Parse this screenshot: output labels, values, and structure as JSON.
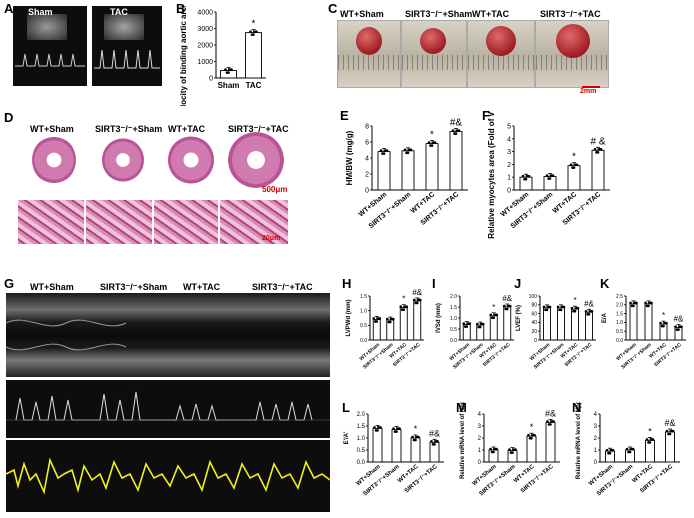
{
  "panels": {
    "A": {
      "letter": "A",
      "labels": [
        "Sham",
        "TAC"
      ]
    },
    "B": {
      "letter": "B",
      "ylabel": "Velocity of binding aortic arch (mm/s)",
      "ytick_top": "4000",
      "categories": [
        "Sham",
        "TAC"
      ],
      "sig": "*"
    },
    "C": {
      "letter": "C",
      "labels": [
        "WT+Sham",
        "SIRT3⁻/⁻+Sham",
        "WT+TAC",
        "SIRT3⁻/⁻+TAC"
      ],
      "scalebar": "2mm"
    },
    "D": {
      "letter": "D",
      "labels": [
        "WT+Sham",
        "SIRT3⁻/⁻+Sham",
        "WT+TAC",
        "SIRT3⁻/⁻+TAC"
      ],
      "scalebar_top": "500μm",
      "scalebar_bottom": "20μm"
    },
    "E": {
      "letter": "E",
      "ylabel": "HM/BW (mg/g)"
    },
    "F": {
      "letter": "F",
      "ylabel": "Relative myocytes area (Fold of WT-Sham)"
    },
    "G": {
      "letter": "G",
      "labels": [
        "WT+Sham",
        "SIRT3⁻/⁻+Sham",
        "WT+TAC",
        "SIRT3⁻/⁻+TAC"
      ]
    },
    "H": {
      "letter": "H",
      "ylabel": "LVPWd (mm)"
    },
    "I": {
      "letter": "I",
      "ylabel": "IVSd (mm)"
    },
    "J": {
      "letter": "J",
      "ylabel": "LVEF (%)"
    },
    "K": {
      "letter": "K",
      "ylabel": "E/A"
    },
    "L": {
      "letter": "L",
      "ylabel": "E'/A'"
    },
    "M": {
      "letter": "M",
      "ylabel": "Relative mRNA level of Nppa"
    },
    "N": {
      "letter": "N",
      "ylabel": "Relative mRNA level of Nppb"
    }
  },
  "group_labels": [
    "WT+Sham",
    "SIRT3⁻/⁻+Sham",
    "WT+TAC",
    "SIRT3⁻/⁻+TAC"
  ],
  "chart_data": [
    {
      "id": "B",
      "type": "bar",
      "categories": [
        "Sham",
        "TAC"
      ],
      "values": [
        450,
        2750
      ],
      "ylim": [
        0,
        4000
      ],
      "yticks": [
        "0",
        "1000",
        "2000",
        "3000",
        "4000"
      ],
      "ylabel": "Velocity of binding aortic arch (mm/s)",
      "sig": [
        "",
        "*"
      ]
    },
    {
      "id": "E",
      "type": "bar",
      "categories": [
        "WT+Sham",
        "SIRT3⁻/⁻+Sham",
        "WT+TAC",
        "SIRT3⁻/⁻+TAC"
      ],
      "values": [
        4.8,
        4.9,
        5.8,
        7.3
      ],
      "ylim": [
        0,
        8
      ],
      "yticks": [
        "0",
        "2",
        "4",
        "6",
        "8"
      ],
      "ylabel": "HM/BW (mg/g)",
      "sig": [
        "",
        "",
        "*",
        "#&"
      ]
    },
    {
      "id": "F",
      "type": "bar",
      "categories": [
        "WT+Sham",
        "SIRT3⁻/⁻+Sham",
        "WT+TAC",
        "SIRT3⁻/⁻+TAC"
      ],
      "values": [
        1.0,
        1.05,
        1.9,
        3.1
      ],
      "ylim": [
        0,
        5
      ],
      "yticks": [
        "0",
        "1",
        "2",
        "3",
        "4",
        "5"
      ],
      "ylabel": "Relative myocytes area (Fold of WT-Sham)",
      "sig": [
        "",
        "",
        "*",
        "# &"
      ]
    },
    {
      "id": "H",
      "type": "bar",
      "categories": [
        "WT+Sham",
        "SIRT3⁻/⁻+Sham",
        "WT+TAC",
        "SIRT3⁻/⁻+TAC"
      ],
      "values": [
        0.7,
        0.68,
        1.1,
        1.33
      ],
      "ylim": [
        0,
        1.5
      ],
      "yticks": [
        "0.0",
        "0.5",
        "1.0",
        "1.5"
      ],
      "ylabel": "LVPWd (mm)",
      "sig": [
        "",
        "",
        "*",
        "#&"
      ]
    },
    {
      "id": "I",
      "type": "bar",
      "categories": [
        "WT+Sham",
        "SIRT3⁻/⁻+Sham",
        "WT+TAC",
        "SIRT3⁻/⁻+TAC"
      ],
      "values": [
        0.7,
        0.68,
        1.1,
        1.5
      ],
      "ylim": [
        0,
        2
      ],
      "yticks": [
        "0.0",
        "0.5",
        "1.0",
        "1.5",
        "2.0"
      ],
      "ylabel": "IVSd (mm)",
      "sig": [
        "",
        "",
        "*",
        "#&"
      ]
    },
    {
      "id": "J",
      "type": "bar",
      "categories": [
        "WT+Sham",
        "SIRT3⁻/⁻+Sham",
        "WT+TAC",
        "SIRT3⁻/⁻+TAC"
      ],
      "values": [
        73,
        73,
        70,
        63
      ],
      "ylim": [
        0,
        100
      ],
      "yticks": [
        "0",
        "20",
        "40",
        "60",
        "80",
        "100"
      ],
      "ylabel": "LVEF (%)",
      "sig": [
        "",
        "",
        "*",
        "#&"
      ]
    },
    {
      "id": "K",
      "type": "bar",
      "categories": [
        "WT+Sham",
        "SIRT3⁻/⁻+Sham",
        "WT+TAC",
        "SIRT3⁻/⁻+TAC"
      ],
      "values": [
        2.05,
        2.05,
        0.9,
        0.7
      ],
      "ylim": [
        0,
        2.5
      ],
      "yticks": [
        "0.0",
        "0.5",
        "1.0",
        "1.5",
        "2.0",
        "2.5"
      ],
      "ylabel": "E/A",
      "sig": [
        "",
        "",
        "*",
        "#&"
      ]
    },
    {
      "id": "L",
      "type": "bar",
      "categories": [
        "WT+Sham",
        "SIRT3⁻/⁻+Sham",
        "WT+TAC",
        "SIRT3⁻/⁻+TAC"
      ],
      "values": [
        1.4,
        1.35,
        1.0,
        0.82
      ],
      "ylim": [
        0,
        2
      ],
      "yticks": [
        "0.0",
        "0.5",
        "1.0",
        "1.5",
        "2.0"
      ],
      "ylabel": "E'/A'",
      "sig": [
        "",
        "",
        "*",
        "#&"
      ]
    },
    {
      "id": "M",
      "type": "bar",
      "categories": [
        "WT+Sham",
        "SIRT3⁻/⁻+Sham",
        "WT+TAC",
        "SIRT3⁻/⁻+TAC"
      ],
      "values": [
        1.0,
        0.95,
        2.15,
        3.3
      ],
      "ylim": [
        0,
        4
      ],
      "yticks": [
        "0",
        "1",
        "2",
        "3",
        "4"
      ],
      "ylabel": "Relative mRNA level of Nppa",
      "sig": [
        "",
        "",
        "*",
        "#&"
      ]
    },
    {
      "id": "N",
      "type": "bar",
      "categories": [
        "WT+Sham",
        "SIRT3⁻/⁻+Sham",
        "WT+TAC",
        "SIRT3⁻/⁻+TAC"
      ],
      "values": [
        0.9,
        1.0,
        1.8,
        2.5
      ],
      "ylim": [
        0,
        4
      ],
      "yticks": [
        "0",
        "1",
        "2",
        "3",
        "4"
      ],
      "ylabel": "Relative mRNA level of Nppb",
      "sig": [
        "",
        "",
        "*",
        "#&"
      ]
    }
  ]
}
